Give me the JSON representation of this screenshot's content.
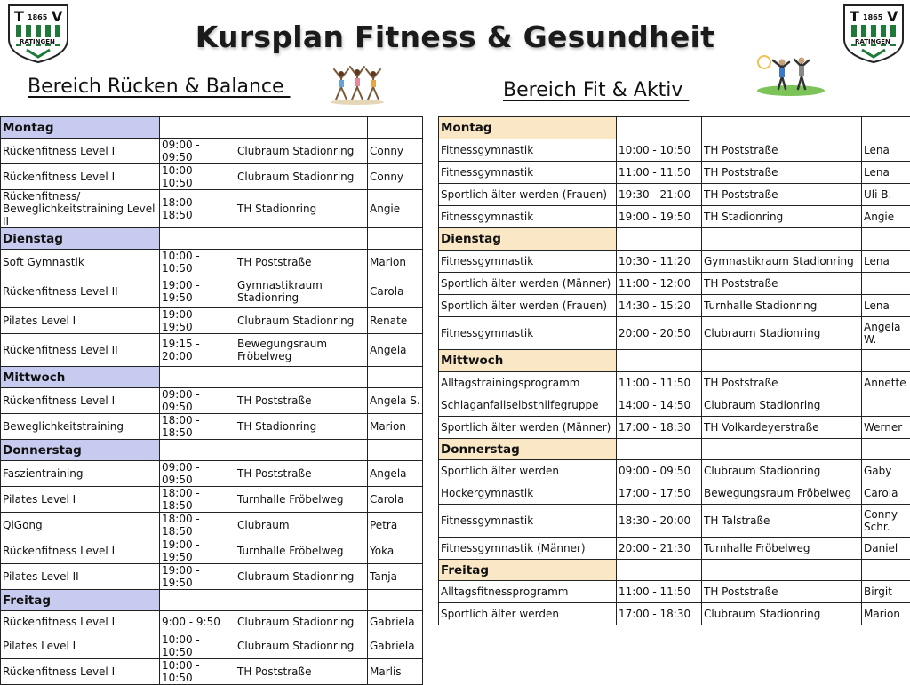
{
  "header": {
    "title": "Kursplan Fitness & Gesundheit",
    "logo_text": {
      "t": "T",
      "v": "V",
      "year": "1865",
      "city": "RATINGEN"
    }
  },
  "sections": {
    "left_title": "Bereich Rücken & Balance ",
    "right_title": "Bereich Fit & Aktiv "
  },
  "left_schedule": [
    {
      "day": "Montag",
      "courses": [
        {
          "course": "Rückenfitness Level I",
          "time": "09:00 - 09:50",
          "place": "Clubraum Stadionring",
          "trainer": "Conny"
        },
        {
          "course": "Rückenfitness Level I",
          "time": "10:00 - 10:50",
          "place": "Clubraum Stadionring",
          "trainer": "Conny"
        },
        {
          "course_line1": "Rückenfitness/",
          "course_line2": "Beweglichkeitstraining Level II",
          "time": "18:00 - 18:50",
          "place": "TH Stadionring",
          "trainer": "Angie"
        }
      ]
    },
    {
      "day": "Dienstag",
      "courses": [
        {
          "course": "Soft Gymnastik",
          "time": "10:00 - 10:50",
          "place": "TH Poststraße",
          "trainer": "Marion"
        },
        {
          "course": "Rückenfitness Level II",
          "time": "19:00 - 19:50",
          "place_line1": "Gymnastikraum",
          "place_line2": "Stadionring",
          "trainer": "Carola"
        },
        {
          "course": "Pilates Level I",
          "time": "19:00 - 19:50",
          "place": "Clubraum Stadionring",
          "trainer": "Renate"
        },
        {
          "course": "Rückenfitness Level II",
          "time": "19:15 - 20:00",
          "place_line1": "Bewegungsraum",
          "place_line2": "Fröbelweg",
          "trainer": "Angela"
        }
      ]
    },
    {
      "day": "Mittwoch",
      "courses": [
        {
          "course": "Rückenfitness Level I",
          "time": "09:00 - 09:50",
          "place": "TH Poststraße",
          "trainer": "Angela S."
        },
        {
          "course": "Beweglichkeitstraining",
          "time": "18:00 - 18:50",
          "place": "TH Stadionring",
          "trainer": "Marion"
        }
      ]
    },
    {
      "day": "Donnerstag",
      "courses": [
        {
          "course": "Faszientraining",
          "time": "09:00 - 09:50",
          "place": "TH Poststraße",
          "trainer": "Angela"
        },
        {
          "course": "Pilates Level I",
          "time": "18:00 - 18:50",
          "place": "Turnhalle Fröbelweg",
          "trainer": "Carola"
        },
        {
          "course": "QiGong",
          "time": "18:00 - 18:50",
          "place": "Clubraum",
          "trainer": "Petra"
        },
        {
          "course": "Rückenfitness Level I",
          "time": "19:00 - 19:50",
          "place": "Turnhalle Fröbelweg",
          "trainer": "Yoka"
        },
        {
          "course": "Pilates Level II",
          "time": "19:00 - 19:50",
          "place": "Clubraum Stadionring",
          "trainer": "Tanja"
        }
      ]
    },
    {
      "day": "Freitag",
      "courses": [
        {
          "course": "Rückenfitness Level I",
          "time": "9:00 - 9:50",
          "place": "Clubraum Stadionring",
          "trainer": "Gabriela"
        },
        {
          "course": "Pilates Level I",
          "time": "10:00 - 10:50",
          "place": "Clubraum Stadionring",
          "trainer": "Gabriela"
        },
        {
          "course": "Rückenfitness Level I",
          "time": "10:00 - 10:50",
          "place": "TH Poststraße",
          "trainer": "Marlis"
        }
      ]
    }
  ],
  "right_schedule": [
    {
      "day": "Montag",
      "courses": [
        {
          "course": "Fitnessgymnastik",
          "time": "10:00 - 10:50",
          "place": "TH Poststraße",
          "trainer": "Lena"
        },
        {
          "course": "Fitnessgymnastik",
          "time": "11:00 - 11:50",
          "place": "TH Poststraße",
          "trainer": "Lena"
        },
        {
          "course": "Sportlich älter werden (Frauen)",
          "time": "19:30 - 21:00",
          "place": "TH Poststraße",
          "trainer": "Uli B."
        },
        {
          "course": "Fitnessgymnastik",
          "time": "19:00 - 19:50",
          "place": "TH Stadionring",
          "trainer": "Angie"
        }
      ]
    },
    {
      "day": "Dienstag",
      "courses": [
        {
          "course": "Fitnessgymnastik",
          "time": "10:30 - 11:20",
          "place": "Gymnastikraum Stadionring",
          "trainer": "Lena"
        },
        {
          "course": "Sportlich älter werden (Männer)",
          "time": "11:00 - 12:00",
          "place": "TH Poststraße",
          "trainer": ""
        },
        {
          "course": "Sportlich älter werden (Frauen)",
          "time": "14:30 - 15:20",
          "place": "Turnhalle Stadionring",
          "trainer": "Lena"
        },
        {
          "course": "Fitnessgymnastik",
          "time": "20:00 - 20:50",
          "place": "Clubraum Stadionring",
          "trainer_line1": "Angela",
          "trainer_line2": "W."
        }
      ]
    },
    {
      "day": "Mittwoch",
      "courses": [
        {
          "course": "Alltagstrainingsprogramm",
          "time": "11:00 - 11:50",
          "place": "TH Poststraße",
          "trainer": "Annette"
        },
        {
          "course": "Schlaganfallselbsthilfegruppe",
          "time": "14:00 - 14:50",
          "place": "Clubraum Stadionring",
          "trainer": ""
        },
        {
          "course": "Sportlich älter werden (Männer)",
          "time": "17:00 - 18:30",
          "place": "TH Volkardeyerstraße",
          "trainer": "Werner"
        }
      ]
    },
    {
      "day": "Donnerstag",
      "courses": [
        {
          "course": "Sportlich älter werden",
          "time": "09:00 - 09:50",
          "place": "Clubraum Stadionring",
          "trainer": "Gaby"
        },
        {
          "course": "Hockergymnastik",
          "time": "17:00 - 17:50",
          "place": "Bewegungsraum Fröbelweg",
          "trainer": "Carola"
        },
        {
          "course": "Fitnessgymnastik",
          "time": "18:30 - 20:00",
          "place": "TH Talstraße",
          "trainer_line1": "Conny",
          "trainer_line2": "Schr."
        },
        {
          "course": "Fitnessgymnastik (Männer)",
          "time": "20:00 - 21:30",
          "place": "Turnhalle Fröbelweg",
          "trainer": "Daniel"
        }
      ]
    },
    {
      "day": "Freitag",
      "courses": [
        {
          "course": "Alltagsfitnessprogramm",
          "time": "11:00 - 11:50",
          "place": "TH Poststraße",
          "trainer": "Birgit"
        },
        {
          "course": "Sportlich älter werden",
          "time": "17:00 - 18:30",
          "place": "Clubraum Stadionring",
          "trainer": "Marion"
        }
      ]
    }
  ],
  "colors": {
    "left_day_bg": "#c8cbf0",
    "right_day_bg": "#f9e7c6",
    "logo_green": "#1f7a3a"
  }
}
